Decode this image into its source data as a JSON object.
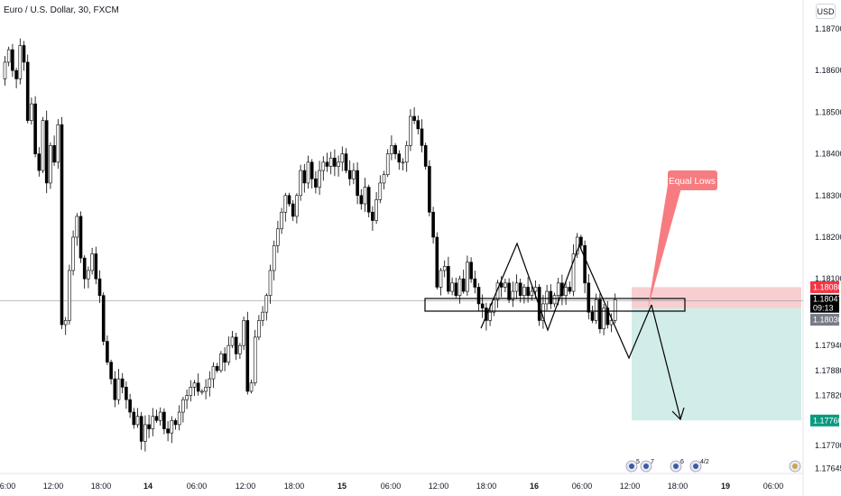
{
  "header": {
    "title": "Euro / U.S. Dollar, 30, FXCM",
    "currency": "USD"
  },
  "annotation": {
    "label": "Equal Lows"
  },
  "price_tags": {
    "stop": "1.18080",
    "current": "1.18047",
    "countdown": "09:13",
    "entry": "1.18030",
    "target": "1.17760"
  },
  "event_icons": [
    {
      "name": "flag-icon",
      "count": "5"
    },
    {
      "name": "flag-icon",
      "count": "7"
    },
    {
      "name": "flag-icon",
      "count": "6"
    },
    {
      "name": "flag-icon",
      "count": "4/2"
    },
    {
      "name": "flag-icon",
      "count": ""
    }
  ],
  "colors": {
    "up_candle": "#ffffff",
    "down_candle": "#000000",
    "stop_zone": "#f7c5c8",
    "target_zone": "#cdeae7",
    "stop_tag": "#f23645",
    "entry_tag": "#787b86",
    "target_tag": "#089981",
    "current_tag": "#000000",
    "label_bg": "#f77c80"
  },
  "chart_data": {
    "type": "candlestick",
    "instrument": "Euro / U.S. Dollar",
    "timeframe": "30",
    "source": "FXCM",
    "y_ticks": [
      "1.18700",
      "1.18600",
      "1.18500",
      "1.18400",
      "1.18300",
      "1.18200",
      "1.18100",
      "1.17940",
      "1.17880",
      "1.17820",
      "1.17700",
      "1.17645"
    ],
    "x_ticks": [
      "06:00",
      "12:00",
      "18:00",
      "14",
      "06:00",
      "12:00",
      "18:00",
      "15",
      "06:00",
      "12:00",
      "18:00",
      "16",
      "06:00",
      "12:00",
      "18:00",
      "19",
      "06:00"
    ],
    "x_ticks_bold": [
      "14",
      "15",
      "16",
      "19"
    ],
    "ylim": [
      1.1762,
      1.1874
    ],
    "close_series": [
      1.1862,
      1.1865,
      1.186,
      1.1858,
      1.1866,
      1.1862,
      1.1848,
      1.1852,
      1.184,
      1.1836,
      1.1848,
      1.1833,
      1.1842,
      1.1838,
      1.1847,
      1.1799,
      1.18,
      1.1812,
      1.182,
      1.1825,
      1.1815,
      1.181,
      1.1812,
      1.1816,
      1.181,
      1.1806,
      1.1795,
      1.179,
      1.1786,
      1.1781,
      1.1786,
      1.1784,
      1.1781,
      1.1778,
      1.1775,
      1.1777,
      1.1771,
      1.1775,
      1.1774,
      1.1777,
      1.1776,
      1.1778,
      1.1774,
      1.1773,
      1.1776,
      1.1775,
      1.1778,
      1.1781,
      1.1782,
      1.1784,
      1.1785,
      1.1783,
      1.1783,
      1.1784,
      1.1786,
      1.1789,
      1.1788,
      1.1792,
      1.179,
      1.1794,
      1.1796,
      1.1792,
      1.1794,
      1.18,
      1.1783,
      1.1785,
      1.1796,
      1.18,
      1.1802,
      1.1806,
      1.1812,
      1.1818,
      1.1822,
      1.1826,
      1.183,
      1.1828,
      1.1825,
      1.183,
      1.1836,
      1.1833,
      1.1838,
      1.1834,
      1.1832,
      1.1836,
      1.1838,
      1.1837,
      1.1839,
      1.1837,
      1.1838,
      1.184,
      1.1836,
      1.1834,
      1.1836,
      1.183,
      1.1828,
      1.1832,
      1.1826,
      1.1824,
      1.1829,
      1.1833,
      1.1835,
      1.184,
      1.1842,
      1.184,
      1.1838,
      1.1838,
      1.1842,
      1.1849,
      1.1848,
      1.1846,
      1.1842,
      1.1837,
      1.1826,
      1.182,
      1.1808,
      1.1812,
      1.1813,
      1.1807,
      1.1809,
      1.1806,
      1.181,
      1.1807,
      1.1814,
      1.181,
      1.1808,
      1.1804,
      1.1803,
      1.18,
      1.1802,
      1.1805,
      1.1809,
      1.1808,
      1.1809,
      1.1805,
      1.1807,
      1.1809,
      1.1806,
      1.1808,
      1.1806,
      1.1807,
      1.1808,
      1.18,
      1.1804,
      1.1807,
      1.1804,
      1.1806,
      1.1809,
      1.1806,
      1.1808,
      1.1807,
      1.1816,
      1.182,
      1.1818,
      1.1809,
      1.1802,
      1.18,
      1.1805,
      1.1798,
      1.1803,
      1.1799,
      1.18,
      1.1805
    ],
    "horizontal_lines": [
      {
        "value": 1.18047,
        "label": "current price"
      }
    ],
    "zones": [
      {
        "name": "stop",
        "from": 1.1803,
        "to": 1.1808
      },
      {
        "name": "target",
        "from": 1.1776,
        "to": 1.1803
      }
    ],
    "annotations": [
      "Equal Lows"
    ]
  }
}
